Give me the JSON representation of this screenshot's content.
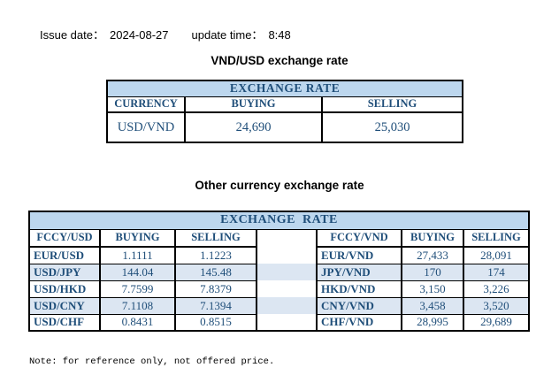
{
  "meta": {
    "issue_date_label": "Issue date：",
    "issue_date": "2024-08-27",
    "update_time_label": "update time：",
    "update_time": "8:48"
  },
  "titles": {
    "usd_table": "VND/USD exchange rate",
    "other_table": "Other currency exchange rate"
  },
  "usd_table": {
    "banner": "EXCHANGE RATE",
    "columns": [
      "CURRENCY",
      "BUYING",
      "SELLING"
    ],
    "row": {
      "currency": "USD/VND",
      "buying": "24,690",
      "selling": "25,030"
    }
  },
  "other_table": {
    "banner": "EXCHANGE  RATE",
    "left_columns": [
      "FCCY/USD",
      "BUYING",
      "SELLING"
    ],
    "right_columns": [
      "FCCY/VND",
      "BUYING",
      "SELLING"
    ],
    "rows": [
      {
        "left": {
          "pair": "EUR/USD",
          "buying": "1.1111",
          "selling": "1.1223"
        },
        "right": {
          "pair": "EUR/VND",
          "buying": "27,433",
          "selling": "28,091"
        }
      },
      {
        "left": {
          "pair": "USD/JPY",
          "buying": "144.04",
          "selling": "145.48"
        },
        "right": {
          "pair": "JPY/VND",
          "buying": "170",
          "selling": "174"
        }
      },
      {
        "left": {
          "pair": "USD/HKD",
          "buying": "7.7599",
          "selling": "7.8379"
        },
        "right": {
          "pair": "HKD/VND",
          "buying": "3,150",
          "selling": "3,226"
        }
      },
      {
        "left": {
          "pair": "USD/CNY",
          "buying": "7.1108",
          "selling": "7.1394"
        },
        "right": {
          "pair": "CNY/VND",
          "buying": "3,458",
          "selling": "3,520"
        }
      },
      {
        "left": {
          "pair": "USD/CHF",
          "buying": "0.8431",
          "selling": "0.8515"
        },
        "right": {
          "pair": "CHF/VND",
          "buying": "28,995",
          "selling": "29,689"
        }
      }
    ]
  },
  "note": "Note: for reference only, not offered price.",
  "colors": {
    "banner_bg": "#BDD7EE",
    "alt_row_bg": "#DCE6F2",
    "table_text": "#1F4E79",
    "border": "#000000",
    "page_bg": "#FFFFFF"
  }
}
